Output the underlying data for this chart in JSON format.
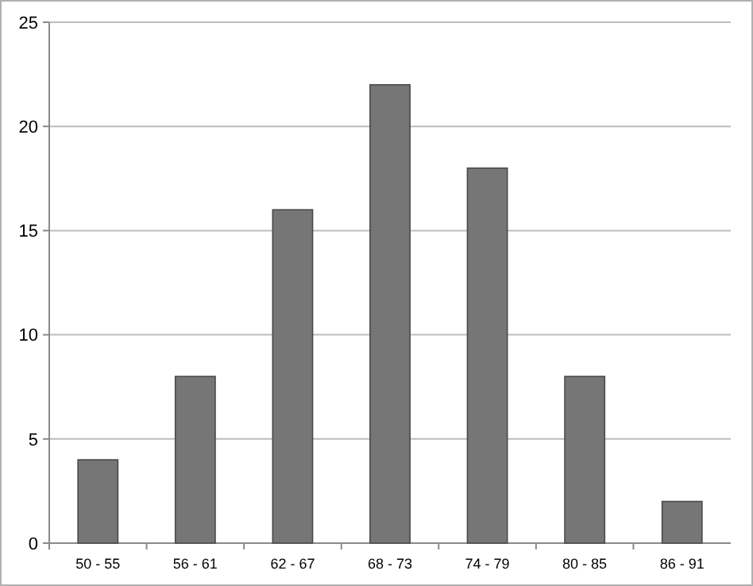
{
  "chart_data": {
    "type": "bar",
    "categories": [
      "50 - 55",
      "56 - 61",
      "62 - 67",
      "68 - 73",
      "74 - 79",
      "80 - 85",
      "86 - 91"
    ],
    "values": [
      4,
      8,
      16,
      22,
      18,
      8,
      2
    ],
    "color": "#767676",
    "ylim": [
      0,
      25
    ],
    "yticks": [
      0,
      5,
      10,
      15,
      20,
      25
    ],
    "grid": "y"
  }
}
